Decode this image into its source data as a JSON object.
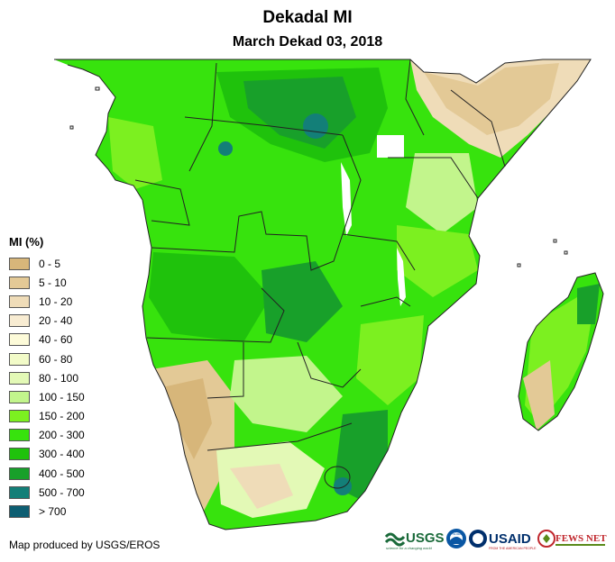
{
  "title": "Dekadal MI",
  "subtitle": "March Dekad 03, 2018",
  "legend": {
    "title": "MI (%)",
    "items": [
      {
        "label": "0 - 5",
        "color": "#d7b67a"
      },
      {
        "label": "5 - 10",
        "color": "#e3c996"
      },
      {
        "label": "10 - 20",
        "color": "#efdcb8"
      },
      {
        "label": "20 - 40",
        "color": "#f8ecd2"
      },
      {
        "label": "40 - 60",
        "color": "#fdfbd9"
      },
      {
        "label": "60 - 80",
        "color": "#f2fbc8"
      },
      {
        "label": "80 - 100",
        "color": "#e3f9b6"
      },
      {
        "label": "100 - 150",
        "color": "#c2f58c"
      },
      {
        "label": "150 - 200",
        "color": "#7cf020"
      },
      {
        "label": "200 - 300",
        "color": "#37e30d"
      },
      {
        "label": "300 - 400",
        "color": "#1fc20c"
      },
      {
        "label": "400 - 500",
        "color": "#18a02a"
      },
      {
        "label": "500 - 700",
        "color": "#137f78"
      },
      {
        "label": "> 700",
        "color": "#0d5e72"
      }
    ]
  },
  "credit": "Map produced by USGS/EROS",
  "logos": {
    "usgs": "USGS",
    "usgs_tagline": "science for a changing world",
    "noaa": "NOAA",
    "usaid": "USAID",
    "usaid_tagline": "FROM THE AMERICAN PEOPLE",
    "fewsnet": "FEWS NET"
  }
}
